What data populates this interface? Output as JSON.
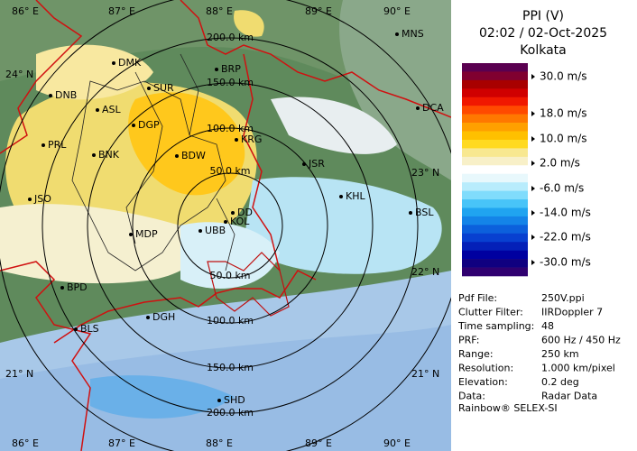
{
  "header": {
    "title": "PPI (V)",
    "datetime": "02:02 / 02-Oct-2025",
    "site": "Kolkata"
  },
  "legend": {
    "colors": [
      "#5a0050",
      "#800030",
      "#a80000",
      "#d00000",
      "#f01800",
      "#ff4a00",
      "#ff7800",
      "#ffa000",
      "#ffc000",
      "#ffda20",
      "#f8e890",
      "#f8f0c8",
      "#ffffff",
      "#e8f8fc",
      "#b8ecfc",
      "#80dcfc",
      "#48c4f8",
      "#20a4f0",
      "#1484e8",
      "#0c60dc",
      "#0840d0",
      "#0420b8",
      "#0000a0",
      "#100080",
      "#300070"
    ],
    "labels": [
      "30.0 m/s",
      "18.0 m/s",
      "10.0 m/s",
      "2.0 m/s",
      "-6.0 m/s",
      "-14.0 m/s",
      "-22.0 m/s",
      "-30.0 m/s"
    ]
  },
  "info": {
    "rows": [
      [
        "Pdf File:",
        "250V.ppi"
      ],
      [
        "Clutter Filter:",
        "IIRDoppler 7"
      ],
      [
        "Time sampling:",
        "48"
      ],
      [
        "PRF:",
        "600 Hz / 450 Hz"
      ],
      [
        "Range:",
        "250 km"
      ],
      [
        "Resolution:",
        "1.000 km/pixel"
      ],
      [
        "Elevation:",
        "0.2 deg"
      ],
      [
        "Data:",
        "Radar Data"
      ]
    ]
  },
  "footer": "Rainbow® SELEX-SI",
  "map": {
    "range_labels_north": [
      "50.0 km",
      "100.0 km",
      "150.0 km",
      "200.0 km"
    ],
    "range_labels_south": [
      "50.0 km",
      "100.0 km",
      "150.0 km",
      "200.0 km"
    ],
    "lon_labels_top": [
      "86° E",
      "87° E",
      "88° E",
      "89° E",
      "90° E"
    ],
    "lon_labels_bottom": [
      "86° E",
      "87° E",
      "88° E",
      "89° E",
      "90° E"
    ],
    "lat_labels_left": [
      "24° N",
      "21° N"
    ],
    "lat_labels_right": [
      "23° N",
      "22° N",
      "21° N"
    ],
    "cities": [
      "MNS",
      "DMK",
      "BRP",
      "DNB",
      "SUR",
      "ASL",
      "DGP",
      "KRG",
      "DCA",
      "PRL",
      "BNK",
      "BDW",
      "JSR",
      "KHL",
      "JSO",
      "DD",
      "KOL",
      "BSL",
      "MDP",
      "UBB",
      "BPD",
      "DGH",
      "BLS",
      "SHD"
    ]
  }
}
